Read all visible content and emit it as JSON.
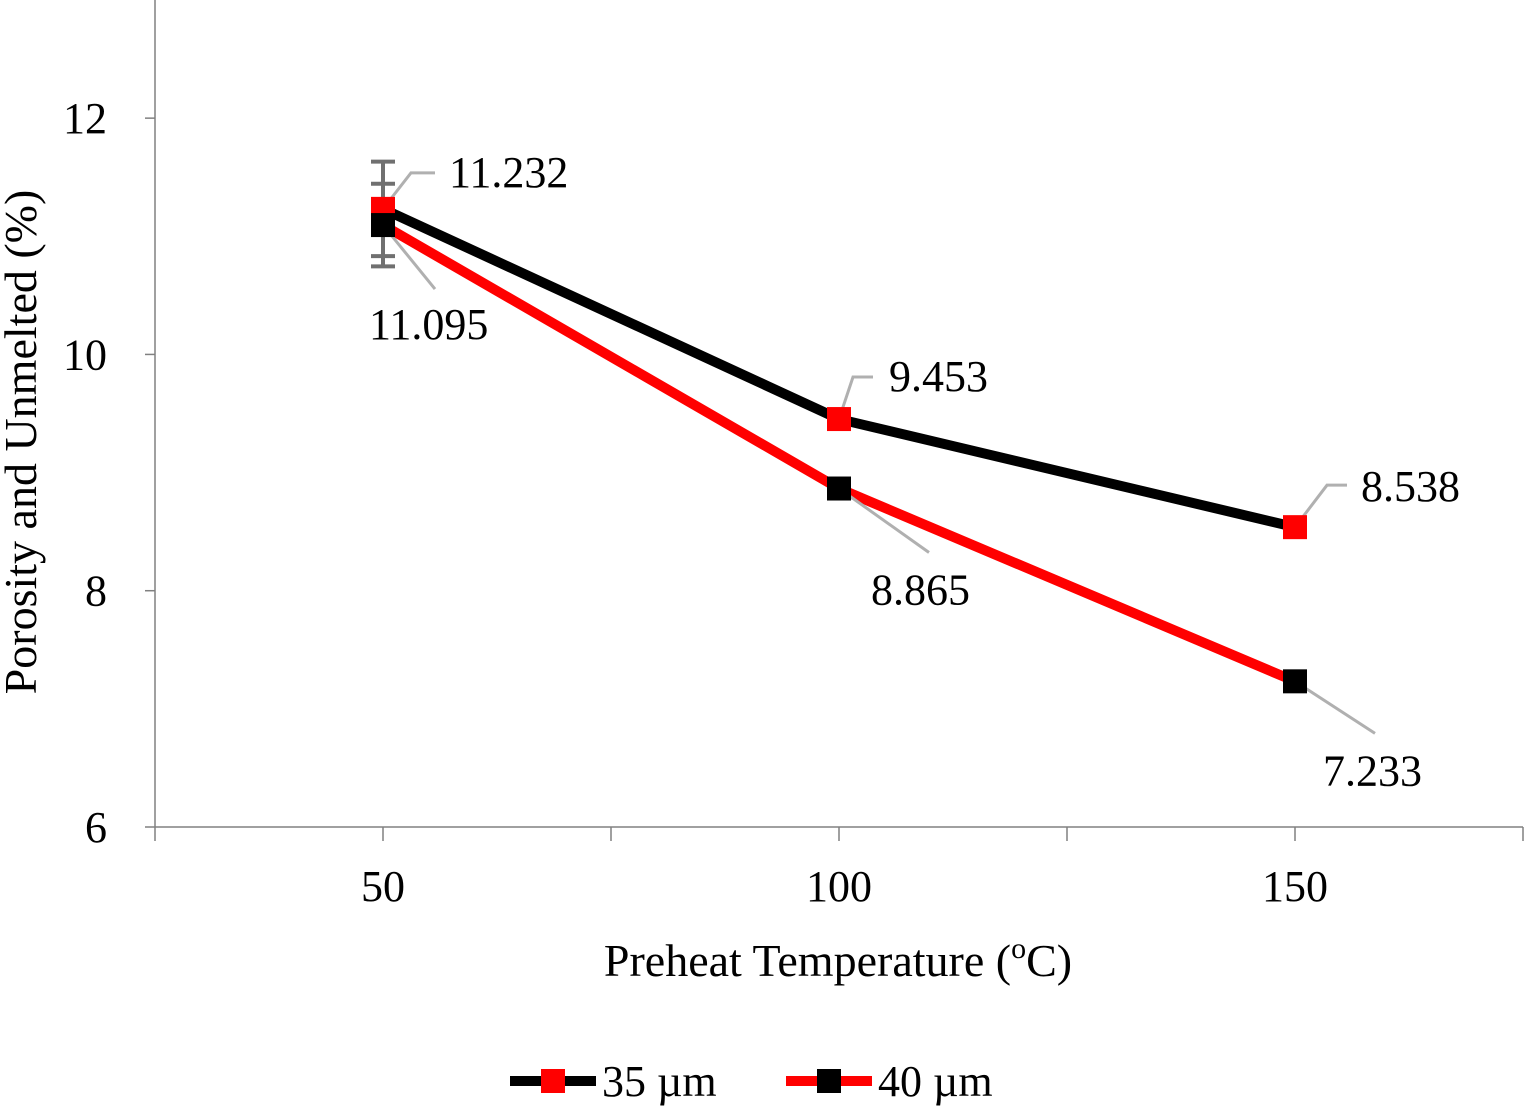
{
  "chart_data": {
    "type": "line",
    "xlabel": "Preheat Temperature (",
    "xlabel_sup": "o",
    "xlabel_end": "C)",
    "ylabel": "Porosity and Unmelted (%)",
    "x": [
      50,
      100,
      150
    ],
    "x_tick_labels": [
      "50",
      "100",
      "150"
    ],
    "xlim": [
      25,
      175
    ],
    "ylim": [
      6,
      13
    ],
    "y_ticks": [
      6,
      8,
      10,
      12
    ],
    "y_tick_labels": [
      "6",
      "8",
      "10",
      "12"
    ],
    "grid": false,
    "legend_position": "bottom",
    "series": [
      {
        "name": "35 µm",
        "values": [
          11.232,
          9.453,
          8.538
        ],
        "labels": [
          "11.232",
          "9.453",
          "8.538"
        ],
        "line_color": "#000000",
        "marker_color": "#ff0000",
        "error": [
          0.4,
          0,
          0
        ]
      },
      {
        "name": "40 µm",
        "values": [
          11.095,
          8.865,
          7.233
        ],
        "labels": [
          "11.095",
          "8.865",
          "7.233"
        ],
        "line_color": "#ff0000",
        "marker_color": "#000000",
        "error": [
          0.35,
          0,
          0
        ]
      }
    ]
  }
}
